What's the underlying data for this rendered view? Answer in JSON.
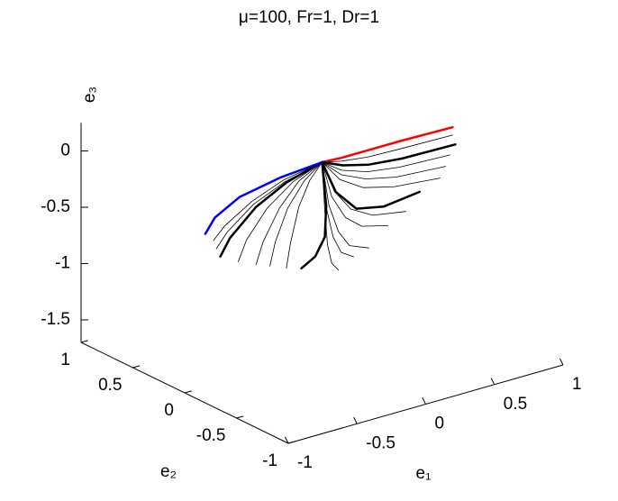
{
  "chart_data": {
    "type": "line3d",
    "title": "μ=100, Fr=1, Dr=1",
    "xlabel": "e₁",
    "ylabel": "e₂",
    "zlabel": "e₃",
    "xlim": [
      -1,
      1
    ],
    "ylim": [
      -1,
      1
    ],
    "zlim": [
      -1.7,
      0.25
    ],
    "xticks": [
      -1,
      -0.5,
      0,
      0.5,
      1
    ],
    "yticks": [
      -1,
      -0.5,
      0,
      0.5,
      1
    ],
    "zticks": [
      -1.5,
      -1,
      -0.5,
      0
    ],
    "series": [
      {
        "color": "#ff0000",
        "linewidth": 2.5,
        "e1": [
          0,
          0.14,
          0.33,
          0.57,
          0.95
        ],
        "e2": [
          0,
          0,
          0,
          0,
          0
        ],
        "e3": [
          0,
          -0.01,
          -0.01,
          -0.01,
          -0.02
        ]
      },
      {
        "color": "#000000",
        "linewidth": 0.8,
        "e1": [
          0,
          0.14,
          0.33,
          0.57,
          0.95
        ],
        "e2": [
          0,
          0,
          0,
          0,
          0
        ],
        "e3": [
          0,
          -0.04,
          -0.07,
          -0.08,
          -0.09
        ]
      },
      {
        "color": "#000000",
        "linewidth": 2.5,
        "e1": [
          0,
          0.15,
          0.34,
          0.58,
          0.97
        ],
        "e2": [
          0,
          0,
          0,
          0,
          0
        ],
        "e3": [
          0,
          -0.08,
          -0.14,
          -0.17,
          -0.18
        ]
      },
      {
        "color": "#000000",
        "linewidth": 0.8,
        "e1": [
          0,
          0.14,
          0.33,
          0.56,
          0.93
        ],
        "e2": [
          0,
          0,
          0,
          0,
          0
        ],
        "e3": [
          0,
          -0.12,
          -0.2,
          -0.24,
          -0.26
        ]
      },
      {
        "color": "#000000",
        "linewidth": 0.8,
        "e1": [
          0,
          0.14,
          0.32,
          0.54,
          0.9
        ],
        "e2": [
          0,
          0,
          0,
          0,
          0
        ],
        "e3": [
          0,
          -0.16,
          -0.26,
          -0.32,
          -0.35
        ]
      },
      {
        "color": "#000000",
        "linewidth": 0.8,
        "e1": [
          0,
          0.13,
          0.3,
          0.52,
          0.86
        ],
        "e2": [
          0,
          0,
          0,
          0,
          0
        ],
        "e3": [
          0,
          -0.2,
          -0.33,
          -0.4,
          -0.44
        ]
      },
      {
        "color": "#000000",
        "linewidth": 2.5,
        "e1": [
          0,
          0.1,
          0.25,
          0.45,
          0.71
        ],
        "e2": [
          0,
          0,
          0,
          0,
          0
        ],
        "e3": [
          0,
          -0.3,
          -0.5,
          -0.55,
          -0.51
        ]
      },
      {
        "color": "#000000",
        "linewidth": 0.8,
        "e1": [
          0,
          0.09,
          0.21,
          0.37,
          0.61
        ],
        "e2": [
          0,
          0,
          0,
          0,
          0
        ],
        "e3": [
          0,
          -0.29,
          -0.49,
          -0.6,
          -0.65
        ]
      },
      {
        "color": "#000000",
        "linewidth": 0.8,
        "e1": [
          0,
          0.07,
          0.17,
          0.29,
          0.48
        ],
        "e2": [
          0,
          0,
          0,
          0,
          0
        ],
        "e3": [
          0,
          -0.33,
          -0.55,
          -0.67,
          -0.73
        ]
      },
      {
        "color": "#000000",
        "linewidth": 0.8,
        "e1": [
          0,
          0.05,
          0.12,
          0.2,
          0.34
        ],
        "e2": [
          0,
          0,
          0,
          0,
          0
        ],
        "e3": [
          0,
          -0.4,
          -0.66,
          -0.81,
          -0.88
        ]
      },
      {
        "color": "#000000",
        "linewidth": 0.8,
        "e1": [
          0,
          0.03,
          0.08,
          0.14,
          0.23
        ],
        "e2": [
          0,
          0,
          0,
          0,
          0
        ],
        "e3": [
          0,
          -0.41,
          -0.69,
          -0.85,
          -0.92
        ]
      },
      {
        "color": "#000000",
        "linewidth": 0.8,
        "e1": [
          0,
          0.02,
          0.04,
          0.07,
          0.12
        ],
        "e2": [
          0,
          0,
          0,
          0,
          0
        ],
        "e3": [
          0,
          -0.45,
          -0.75,
          -0.92,
          -1.0
        ]
      },
      {
        "color": "#000000",
        "linewidth": 2.5,
        "e1": [
          0,
          0.03,
          0.02,
          -0.05,
          -0.15
        ],
        "e2": [
          0,
          0,
          0,
          0,
          0
        ],
        "e3": [
          0,
          -0.4,
          -0.67,
          -0.82,
          -0.89
        ]
      },
      {
        "color": "#000000",
        "linewidth": 0.8,
        "e1": [
          0,
          -0.09,
          -0.17,
          -0.23,
          -0.26
        ],
        "e2": [
          0,
          0,
          0,
          0,
          0
        ],
        "e3": [
          0,
          -0.13,
          -0.34,
          -0.64,
          -0.85
        ]
      },
      {
        "color": "#000000",
        "linewidth": 0.8,
        "e1": [
          0,
          -0.13,
          -0.25,
          -0.34,
          -0.38
        ],
        "e2": [
          0,
          0,
          0,
          0,
          0
        ],
        "e3": [
          0,
          -0.12,
          -0.32,
          -0.59,
          -0.79
        ]
      },
      {
        "color": "#000000",
        "linewidth": 0.8,
        "e1": [
          0,
          -0.17,
          -0.31,
          -0.43,
          -0.48
        ],
        "e2": [
          0,
          0,
          0,
          0,
          0
        ],
        "e3": [
          0,
          -0.11,
          -0.3,
          -0.56,
          -0.74
        ]
      },
      {
        "color": "#000000",
        "linewidth": 0.8,
        "e1": [
          0,
          -0.21,
          -0.4,
          -0.55,
          -0.61
        ],
        "e2": [
          0,
          0,
          0,
          0,
          0
        ],
        "e3": [
          0,
          -0.1,
          -0.27,
          -0.5,
          -0.67
        ]
      },
      {
        "color": "#000000",
        "linewidth": 2.5,
        "e1": [
          0,
          -0.26,
          -0.48,
          -0.67,
          -0.74
        ],
        "e2": [
          0,
          0,
          0,
          0,
          0
        ],
        "e3": [
          0,
          -0.09,
          -0.23,
          -0.44,
          -0.58
        ]
      },
      {
        "color": "#000000",
        "linewidth": 0.8,
        "e1": [
          0,
          -0.27,
          -0.5,
          -0.69,
          -0.77
        ],
        "e2": [
          0,
          0,
          0,
          0,
          0
        ],
        "e3": [
          0,
          -0.08,
          -0.2,
          -0.38,
          -0.5
        ]
      },
      {
        "color": "#000000",
        "linewidth": 0.8,
        "e1": [
          0,
          -0.28,
          -0.51,
          -0.71,
          -0.79
        ],
        "e2": [
          0,
          0,
          0,
          0,
          0
        ],
        "e3": [
          0,
          -0.06,
          -0.17,
          -0.32,
          -0.42
        ]
      },
      {
        "color": "#0000ff",
        "linewidth": 2.5,
        "e1": [
          0,
          -0.3,
          -0.6,
          -0.78,
          -0.85
        ],
        "e2": [
          0,
          0,
          0,
          0,
          0
        ],
        "e3": [
          0,
          -0.03,
          -0.1,
          -0.22,
          -0.34
        ]
      }
    ]
  }
}
